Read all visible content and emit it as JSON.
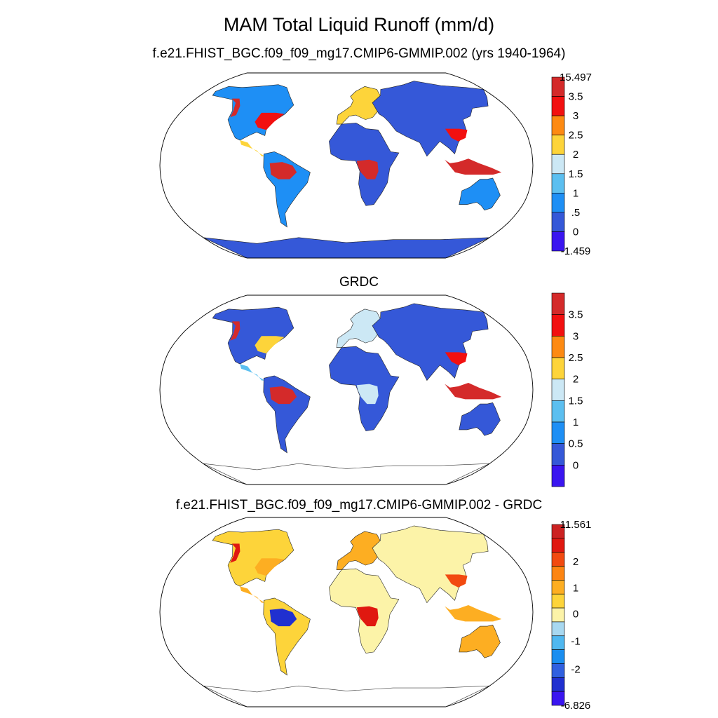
{
  "figure": {
    "title": "MAM Total Liquid Runoff (mm/d)"
  },
  "chart_data": [
    {
      "type": "heatmap",
      "projection": "Robinson",
      "title": "f.e21.FHIST_BGC.f09_f09_mg17.CMIP6-GMMIP.002 (yrs 1940-1964)",
      "colorbar": {
        "colors": [
          "#3a15f0",
          "#3558d8",
          "#1e8ff5",
          "#5cbff0",
          "#cce8f5",
          "#fdd43a",
          "#fd8a12",
          "#f21010",
          "#d42a2a"
        ],
        "labels": [
          "-1.459",
          "0",
          ".5",
          "1",
          "1.5",
          "2",
          "2.5",
          "3",
          "3.5",
          "15.497"
        ],
        "label_mode": "edges",
        "min": -1.459,
        "max": 15.497
      },
      "regions": [
        {
          "name": "north-america",
          "value": 0.5
        },
        {
          "name": "pacific-northwest",
          "value": 3.8
        },
        {
          "name": "eastern-north-america",
          "value": 3.2
        },
        {
          "name": "central-america",
          "value": 2.0
        },
        {
          "name": "south-america",
          "value": 0.8
        },
        {
          "name": "amazon",
          "value": 4.0
        },
        {
          "name": "europe",
          "value": 2.2
        },
        {
          "name": "africa",
          "value": 0.2
        },
        {
          "name": "central-africa",
          "value": 3.6
        },
        {
          "name": "asia",
          "value": 0.3
        },
        {
          "name": "east-asia",
          "value": 3.2
        },
        {
          "name": "southeast-asia",
          "value": 3.8
        },
        {
          "name": "australia",
          "value": 0.8
        },
        {
          "name": "antarctica",
          "value": 0.1
        }
      ]
    },
    {
      "type": "heatmap",
      "projection": "Robinson",
      "title": "GRDC",
      "colorbar": {
        "colors": [
          "#3a15f0",
          "#3558d8",
          "#1e8ff5",
          "#5cbff0",
          "#cce8f5",
          "#fdd43a",
          "#fd8a12",
          "#f21010",
          "#d42a2a"
        ],
        "labels": [
          "0",
          "0.5",
          "1",
          "1.5",
          "2",
          "2.5",
          "3",
          "3.5"
        ],
        "label_mode": "inner-edges"
      },
      "regions": [
        {
          "name": "north-america",
          "value": 0.2
        },
        {
          "name": "pacific-northwest",
          "value": 3.6
        },
        {
          "name": "eastern-north-america",
          "value": 2.3
        },
        {
          "name": "central-america",
          "value": 1.2
        },
        {
          "name": "south-america",
          "value": 0.3
        },
        {
          "name": "amazon",
          "value": 3.9
        },
        {
          "name": "europe",
          "value": 1.6
        },
        {
          "name": "africa",
          "value": 0.1
        },
        {
          "name": "central-africa",
          "value": 1.8
        },
        {
          "name": "asia",
          "value": 0.1
        },
        {
          "name": "east-asia",
          "value": 3.0
        },
        {
          "name": "southeast-asia",
          "value": 3.8
        },
        {
          "name": "australia",
          "value": 0.1
        }
      ]
    },
    {
      "type": "heatmap",
      "projection": "Robinson",
      "title": "f.e21.FHIST_BGC.f09_f09_mg17.CMIP6-GMMIP.002 - GRDC",
      "colorbar": {
        "colors": [
          "#3a15f0",
          "#2030d0",
          "#3060e0",
          "#1a8ef0",
          "#50b8f0",
          "#a8d8f0",
          "#fcf3a8",
          "#fdd43a",
          "#fdae22",
          "#fd8512",
          "#f24a10",
          "#e01810",
          "#cc2222"
        ],
        "labels": [
          "-6.826",
          "-2",
          "-1",
          "0",
          "1",
          "2",
          "11.561"
        ],
        "label_mode": "custom"
      },
      "regions": [
        {
          "name": "north-america",
          "value": 0.4
        },
        {
          "name": "pacific-northwest",
          "value": 2.5
        },
        {
          "name": "eastern-north-america",
          "value": 0.8
        },
        {
          "name": "central-america",
          "value": 0.9
        },
        {
          "name": "south-america",
          "value": 0.3
        },
        {
          "name": "amazon",
          "value": -2.5
        },
        {
          "name": "europe",
          "value": 0.6
        },
        {
          "name": "africa",
          "value": 0.05
        },
        {
          "name": "central-africa",
          "value": 2.5
        },
        {
          "name": "asia",
          "value": 0.2
        },
        {
          "name": "east-asia",
          "value": 1.5
        },
        {
          "name": "southeast-asia",
          "value": 0.5
        },
        {
          "name": "australia",
          "value": 0.9
        }
      ]
    }
  ]
}
